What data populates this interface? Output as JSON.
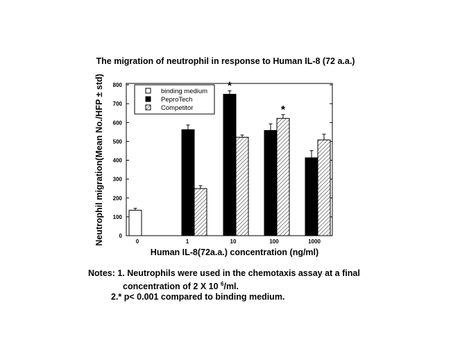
{
  "chart_data": {
    "type": "bar",
    "title": "The migration of neutrophil in response to Human IL-8 (72 a.a.)",
    "xlabel": "Human IL-8(72a.a.)  concentration (ng/ml)",
    "ylabel": "Neutrophil migration(Mean No./HFP ± std)",
    "ylim": [
      0,
      800
    ],
    "yticks": [
      "0",
      "100",
      "200",
      "300",
      "400",
      "500",
      "600",
      "700",
      "800"
    ],
    "categories": [
      "0",
      "1",
      "10",
      "100",
      "1000"
    ],
    "legend_position": "top-left",
    "series": [
      {
        "name": "binding medium",
        "fill": "white",
        "values": [
          135,
          null,
          null,
          null,
          null
        ],
        "errors": [
          10,
          null,
          null,
          null,
          null
        ]
      },
      {
        "name": "PeproTech",
        "fill": "black",
        "values": [
          null,
          562,
          750,
          558,
          413
        ],
        "errors": [
          null,
          25,
          18,
          35,
          38
        ]
      },
      {
        "name": "Competitor",
        "fill": "hatched",
        "values": [
          null,
          250,
          522,
          622,
          508
        ],
        "errors": [
          null,
          15,
          12,
          20,
          30
        ]
      }
    ],
    "annotations": [
      {
        "text": "*",
        "category": "10",
        "series": "PeproTech"
      },
      {
        "text": "*",
        "category": "100",
        "series": "Competitor"
      }
    ]
  },
  "notes": {
    "line1": "Notes: 1. Neutrophils were used in the chemotaxis assay at a final",
    "line2a": "concentration of 2 X 10 ",
    "line2sup": "6",
    "line2b": "/ml.",
    "line3": "2.* p< 0.001 compared to binding medium."
  }
}
